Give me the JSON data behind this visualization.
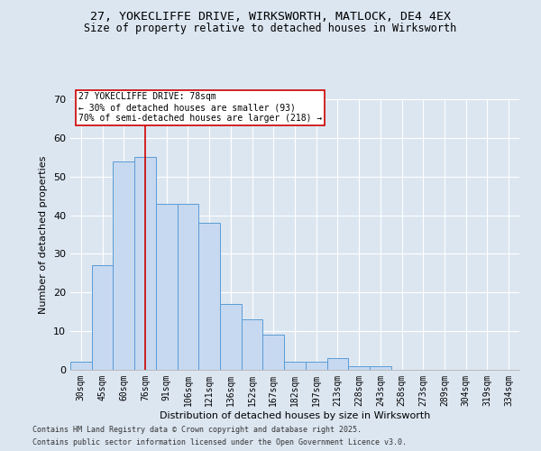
{
  "title_line1": "27, YOKECLIFFE DRIVE, WIRKSWORTH, MATLOCK, DE4 4EX",
  "title_line2": "Size of property relative to detached houses in Wirksworth",
  "xlabel": "Distribution of detached houses by size in Wirksworth",
  "ylabel": "Number of detached properties",
  "categories": [
    "30sqm",
    "45sqm",
    "60sqm",
    "76sqm",
    "91sqm",
    "106sqm",
    "121sqm",
    "136sqm",
    "152sqm",
    "167sqm",
    "182sqm",
    "197sqm",
    "213sqm",
    "228sqm",
    "243sqm",
    "258sqm",
    "273sqm",
    "289sqm",
    "304sqm",
    "319sqm",
    "334sqm"
  ],
  "values": [
    2,
    27,
    54,
    55,
    43,
    43,
    38,
    17,
    13,
    9,
    2,
    2,
    3,
    1,
    1,
    0,
    0,
    0,
    0,
    0,
    0
  ],
  "bar_color": "#c6d9f0",
  "bar_edge_color": "#5b9bd5",
  "background_color": "#dce6f1",
  "red_line_index": 3,
  "annotation_line1": "27 YOKECLIFFE DRIVE: 78sqm",
  "annotation_line2": "← 30% of detached houses are smaller (93)",
  "annotation_line3": "70% of semi-detached houses are larger (218) →",
  "annotation_box_color": "#ffffff",
  "annotation_box_edge": "#cc0000",
  "vline_color": "#cc0000",
  "ylim": [
    0,
    70
  ],
  "yticks": [
    0,
    10,
    20,
    30,
    40,
    50,
    60,
    70
  ],
  "footer_line1": "Contains HM Land Registry data © Crown copyright and database right 2025.",
  "footer_line2": "Contains public sector information licensed under the Open Government Licence v3.0."
}
